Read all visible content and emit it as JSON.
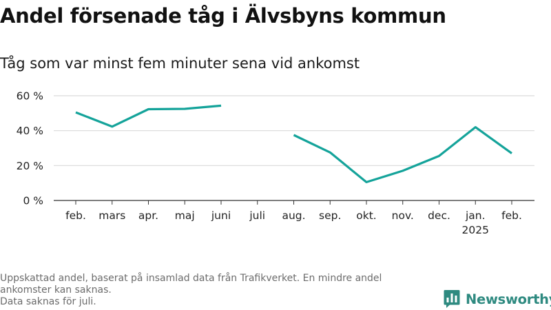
{
  "header": {
    "title": "Andel försenade tåg i Älvsbyns kommun",
    "subtitle": "Tåg som var minst fem minuter sena vid ankomst"
  },
  "chart_data": {
    "type": "line",
    "categories": [
      "feb.",
      "mars",
      "apr.",
      "maj",
      "juni",
      "juli",
      "aug.",
      "sep.",
      "okt.",
      "nov.",
      "dec.",
      "jan.",
      "feb."
    ],
    "category_sublabels": [
      "",
      "",
      "",
      "",
      "",
      "",
      "",
      "",
      "",
      "",
      "",
      "2025",
      ""
    ],
    "series": [
      {
        "values": [
          50.5,
          42.3,
          52.3,
          52.5,
          54.3,
          null,
          37.5,
          27.5,
          10.5,
          17.0,
          25.5,
          42.0,
          27.0
        ],
        "color": "#14a39a"
      }
    ],
    "yticks": [
      0,
      20,
      40,
      60
    ],
    "ytick_labels": [
      "0 %",
      "20 %",
      "40 %",
      "60 %"
    ],
    "ylim": [
      0,
      60
    ],
    "grid": true,
    "gridline_color": "#d9d9d9",
    "baseline_color": "#333333"
  },
  "footer": {
    "note_line1": "Uppskattad andel, baserat på insamlad data från Trafikverket. En mindre andel ankomster kan saknas.",
    "note_line2": "Data saknas för juli.",
    "brand": "Newsworthy",
    "brand_color": "#2e8a80"
  }
}
